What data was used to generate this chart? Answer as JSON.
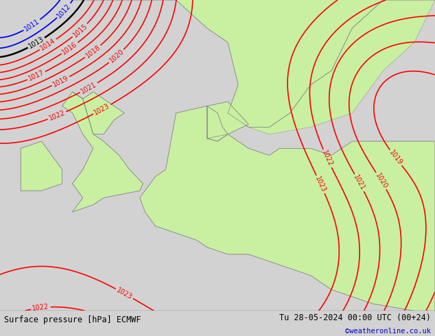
{
  "title_left": "Surface pressure [hPa] ECMWF",
  "title_right": "Tu 28-05-2024 00:00 UTC (00+24)",
  "credit": "©weatheronline.co.uk",
  "land_color": "#c8f0a0",
  "sea_color": "#d2d2d2",
  "coast_color": "#888888",
  "figsize": [
    6.34,
    4.9
  ],
  "dpi": 100,
  "bottom_bar_color": "#ffffff",
  "text_color": "#000000",
  "credit_color": "#0000cc",
  "blue_color": "#0000ff",
  "red_color": "#ff0000",
  "black_color": "#000000"
}
